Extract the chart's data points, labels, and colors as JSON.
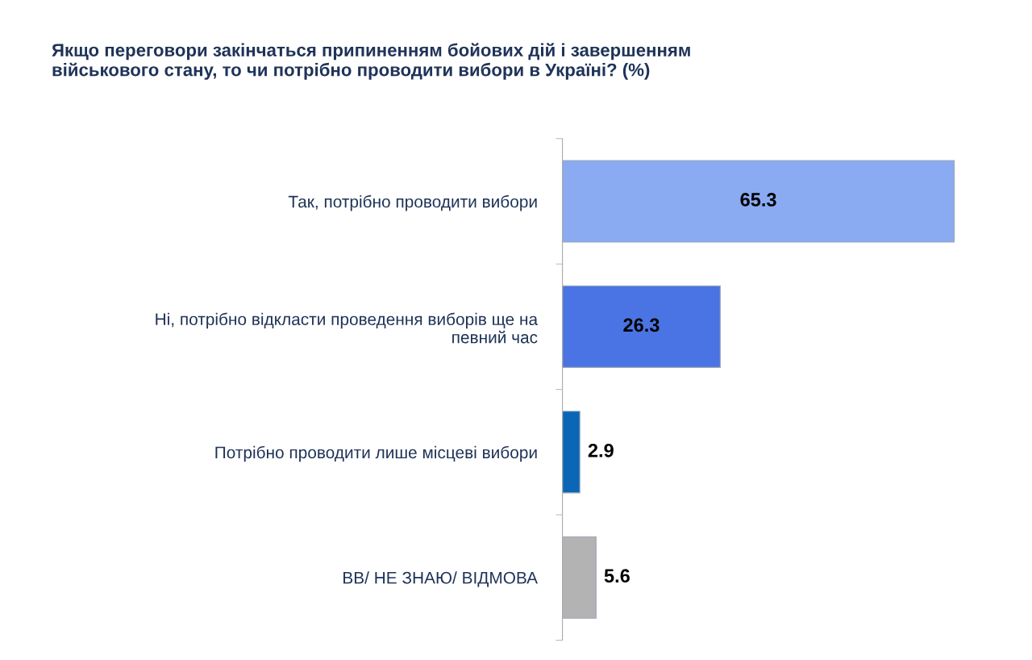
{
  "chart_data": {
    "type": "bar",
    "orientation": "horizontal",
    "title": "Якщо переговори закінчаться припиненням бойових дій і завершенням\nвійськового стану, то чи потрібно проводити вибори в Україні? (%)",
    "categories": [
      "Так, потрібно проводити вибори",
      "Ні, потрібно відкласти проведення виборів ще на\nпевний час",
      "Потрібно проводити лише місцеві вибори",
      "ВВ/ НЕ ЗНАЮ/ ВІДМОВА"
    ],
    "values": [
      65.3,
      26.3,
      2.9,
      5.6
    ],
    "colors": [
      "#8aabf2",
      "#4a74e3",
      "#0b66b5",
      "#b3b3b3"
    ],
    "data_labels": true,
    "tick_labels": "y"
  }
}
